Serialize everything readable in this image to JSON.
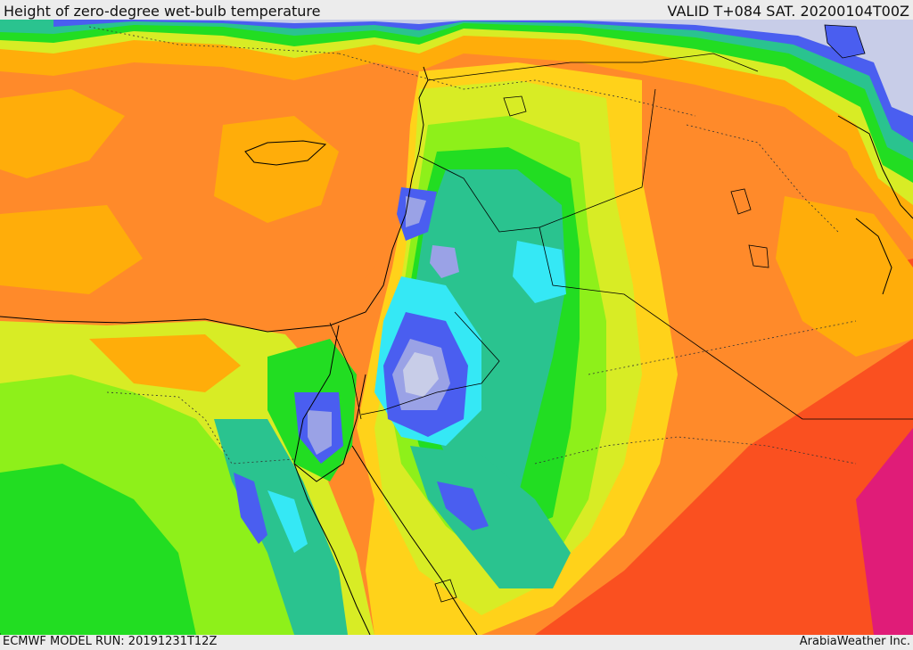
{
  "header": {
    "title": "Height of zero-degree wet-bulb temperature",
    "valid": "VALID T+084 SAT. 20200104T00Z"
  },
  "footer": {
    "model_run": "ECMWF MODEL RUN: 20191231T12Z",
    "credit": "ArabiaWeather Inc."
  },
  "map": {
    "region": "Eastern Mediterranean and Middle East",
    "field": "zero-degree wet-bulb height",
    "palette": {
      "lowest": "#c8cde8",
      "lavender": "#9aa2e6",
      "blue": "#4a5ef0",
      "cyan": "#35e8f5",
      "teal": "#2ac38f",
      "green": "#22dd22",
      "lightgreen": "#8ef01a",
      "yellowgreen": "#d8ec25",
      "yellow": "#ffd21a",
      "orange": "#ffad0a",
      "darkorange": "#ff8a2a",
      "red": "#fa5020",
      "magenta": "#e01c78"
    }
  }
}
